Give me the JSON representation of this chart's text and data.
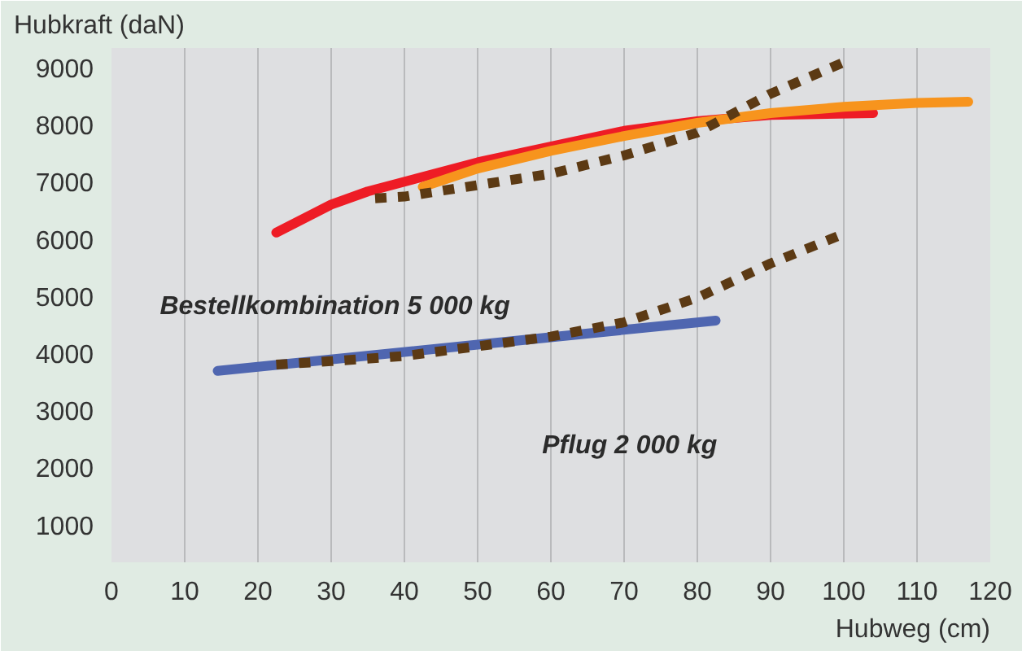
{
  "chart_data": {
    "type": "line",
    "ylabel": "Hubkraft (daN)",
    "xlabel": "Hubweg (cm)",
    "xlim": [
      0,
      120
    ],
    "xticks": [
      0,
      10,
      20,
      30,
      40,
      50,
      60,
      70,
      80,
      90,
      100,
      110,
      120
    ],
    "ylim": [
      340,
      9340
    ],
    "yticks": [
      1000,
      2000,
      3000,
      4000,
      5000,
      6000,
      7000,
      8000,
      9000
    ],
    "grid": "x",
    "series": [
      {
        "color": "#ee1c25",
        "line_style": "solid",
        "x": [
          22.5,
          30,
          35,
          50,
          70,
          80,
          90,
          104
        ],
        "values": [
          6110,
          6600,
          6830,
          7340,
          7890,
          8060,
          8170,
          8200
        ]
      },
      {
        "color": "#f7941d",
        "line_style": "solid",
        "x": [
          42.5,
          50,
          60,
          70,
          80,
          90,
          100,
          110,
          117
        ],
        "values": [
          6910,
          7230,
          7540,
          7800,
          8030,
          8200,
          8310,
          8380,
          8400
        ]
      },
      {
        "color": "#5c3a14",
        "line_style": "dotted",
        "x": [
          36,
          40,
          50,
          60,
          70,
          80,
          85,
          90,
          100
        ],
        "values": [
          6710,
          6740,
          6940,
          7140,
          7460,
          7860,
          8200,
          8540,
          9090
        ]
      },
      {
        "color": "#4f66b0",
        "line_style": "solid",
        "x": [
          14.5,
          82.5
        ],
        "values": [
          3690,
          4570
        ]
      },
      {
        "color": "#5c3a14",
        "line_style": "dotted",
        "x": [
          22.5,
          30,
          40,
          50,
          60,
          70,
          80,
          90,
          100
        ],
        "values": [
          3800,
          3860,
          3950,
          4120,
          4290,
          4540,
          4970,
          5570,
          6090
        ]
      }
    ],
    "annotations": [
      "Bestellkombination 5 000 kg",
      "Pflug 2 000 kg"
    ]
  }
}
